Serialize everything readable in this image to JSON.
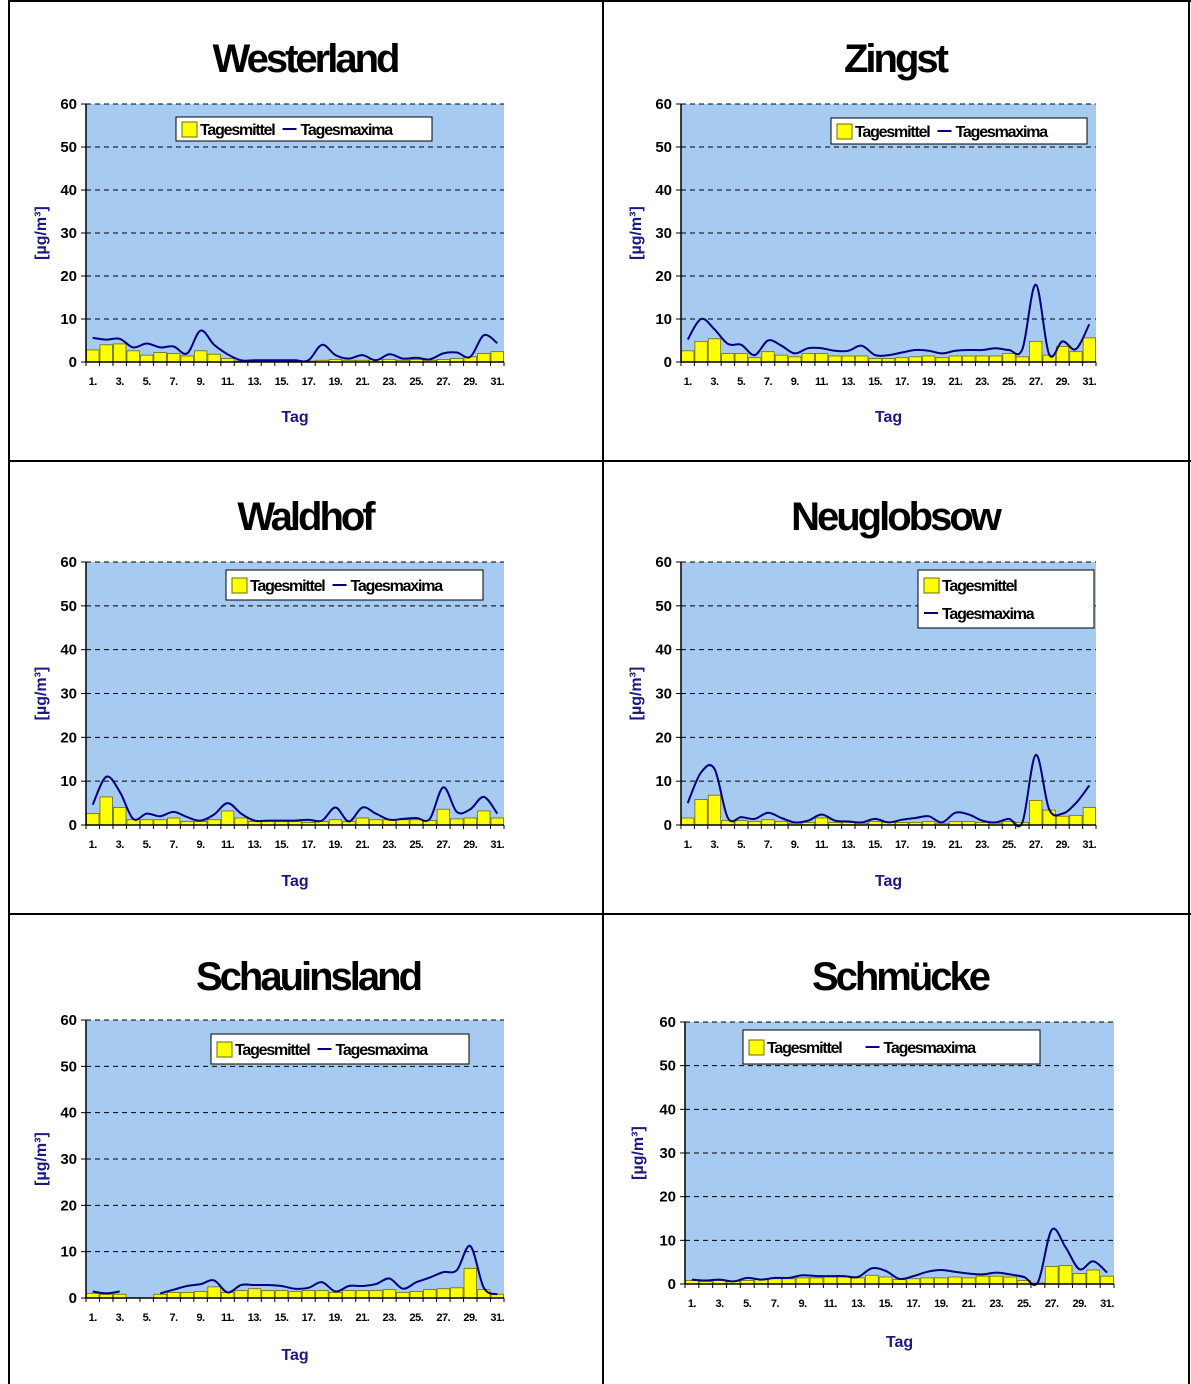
{
  "colors": {
    "plot_bg": "#a6caf0",
    "bar_fill": "#ffff00",
    "bar_stroke": "#6b6b00",
    "line": "#000080",
    "grid": "#000000"
  },
  "chart_data": [
    {
      "type": "bar",
      "title": "Westerland",
      "xlabel": "Tag",
      "ylabel": "[µg/m³]",
      "ylim": [
        0,
        60
      ],
      "yticks": [
        "0",
        "10",
        "20",
        "30",
        "40",
        "50",
        "60"
      ],
      "xticks": [
        "1.",
        "3.",
        "5.",
        "7.",
        "9.",
        "11.",
        "13.",
        "15.",
        "17.",
        "19.",
        "21.",
        "23.",
        "25.",
        "27.",
        "29.",
        "31."
      ],
      "grid": "horizontal dashed",
      "legend": "top-center",
      "series": [
        {
          "name": "Tagesmittel",
          "type": "bar",
          "values": [
            2.8,
            4.0,
            4.2,
            2.6,
            1.6,
            2.2,
            2.0,
            1.4,
            2.6,
            1.8,
            0.8,
            0.2,
            0.2,
            0.2,
            0.2,
            0.2,
            0.2,
            0.4,
            0.6,
            0.4,
            0.4,
            0.6,
            0.6,
            0.4,
            0.6,
            0.4,
            0.6,
            0.8,
            1.2,
            2.0,
            2.4
          ]
        },
        {
          "name": "Tagesmaxima",
          "type": "line",
          "values": [
            5.6,
            5.2,
            5.4,
            3.4,
            4.3,
            3.4,
            3.6,
            2.0,
            7.3,
            4.0,
            1.8,
            0.4,
            0.4,
            0.4,
            0.4,
            0.4,
            0.4,
            4.0,
            1.6,
            0.8,
            1.6,
            0.4,
            1.8,
            0.8,
            1.0,
            0.6,
            2.0,
            2.2,
            1.2,
            6.2,
            4.4
          ]
        }
      ]
    },
    {
      "type": "bar",
      "title": "Zingst",
      "xlabel": "Tag",
      "ylabel": "[µg/m³]",
      "ylim": [
        0,
        60
      ],
      "yticks": [
        "0",
        "10",
        "20",
        "30",
        "40",
        "50",
        "60"
      ],
      "xticks": [
        "1.",
        "3.",
        "5.",
        "7.",
        "9.",
        "11.",
        "13.",
        "15.",
        "17.",
        "19.",
        "21.",
        "23.",
        "25.",
        "27.",
        "29.",
        "31."
      ],
      "grid": "horizontal dashed",
      "legend": "top-right",
      "series": [
        {
          "name": "Tagesmittel",
          "type": "bar",
          "values": [
            2.6,
            4.8,
            5.4,
            2.0,
            2.0,
            1.0,
            2.4,
            1.6,
            1.2,
            2.0,
            2.0,
            1.4,
            1.4,
            1.4,
            0.8,
            0.8,
            1.0,
            1.2,
            1.4,
            1.0,
            1.4,
            1.4,
            1.4,
            1.4,
            2.0,
            1.2,
            4.8,
            1.6,
            3.6,
            2.4,
            5.6
          ]
        },
        {
          "name": "Tagesmaxima",
          "type": "line",
          "values": [
            5.2,
            10.0,
            7.6,
            4.2,
            4.0,
            1.6,
            5.0,
            3.8,
            2.0,
            3.2,
            3.2,
            2.6,
            2.6,
            3.8,
            1.6,
            1.6,
            2.2,
            2.8,
            2.6,
            2.0,
            2.6,
            2.8,
            2.8,
            3.2,
            2.8,
            3.0,
            18.0,
            1.8,
            4.8,
            3.0,
            8.8
          ]
        }
      ]
    },
    {
      "type": "bar",
      "title": "Waldhof",
      "xlabel": "Tag",
      "ylabel": "[µg/m³]",
      "ylim": [
        0,
        60
      ],
      "yticks": [
        "0",
        "10",
        "20",
        "30",
        "40",
        "50",
        "60"
      ],
      "xticks": [
        "1.",
        "3.",
        "5.",
        "7.",
        "9.",
        "11.",
        "13.",
        "15.",
        "17.",
        "19.",
        "21.",
        "23.",
        "25.",
        "27.",
        "29.",
        "31."
      ],
      "grid": "horizontal dashed",
      "legend": "top-right",
      "series": [
        {
          "name": "Tagesmittel",
          "type": "bar",
          "values": [
            2.6,
            6.4,
            4.0,
            1.2,
            1.2,
            1.2,
            1.6,
            0.8,
            0.8,
            1.2,
            3.2,
            1.6,
            0.8,
            0.8,
            0.8,
            0.8,
            0.6,
            0.8,
            1.2,
            0.8,
            1.6,
            1.2,
            1.2,
            1.2,
            1.2,
            1.0,
            3.6,
            1.4,
            1.6,
            3.2,
            1.6
          ]
        },
        {
          "name": "Tagesmaxima",
          "type": "line",
          "values": [
            4.6,
            11.0,
            7.6,
            1.4,
            2.6,
            2.0,
            3.0,
            1.8,
            1.0,
            2.4,
            5.0,
            2.6,
            1.0,
            1.0,
            1.0,
            1.0,
            1.2,
            1.0,
            4.0,
            0.8,
            4.0,
            2.6,
            1.2,
            1.4,
            1.6,
            1.4,
            8.6,
            3.0,
            3.6,
            6.4,
            2.6
          ]
        }
      ]
    },
    {
      "type": "bar",
      "title": "Neuglobsow",
      "xlabel": "Tag",
      "ylabel": "[µg/m³]",
      "ylim": [
        0,
        60
      ],
      "yticks": [
        "0",
        "10",
        "20",
        "30",
        "40",
        "50",
        "60"
      ],
      "xticks": [
        "1.",
        "3.",
        "5.",
        "7.",
        "9.",
        "11.",
        "13.",
        "15.",
        "17.",
        "19.",
        "21.",
        "23.",
        "25.",
        "27.",
        "29.",
        "31."
      ],
      "grid": "horizontal dashed",
      "legend": "top-right",
      "series": [
        {
          "name": "Tagesmittel",
          "type": "bar",
          "values": [
            1.6,
            5.8,
            6.8,
            1.0,
            1.0,
            0.8,
            1.2,
            0.8,
            0.4,
            0.6,
            1.6,
            0.6,
            0.6,
            0.4,
            0.8,
            0.6,
            0.6,
            0.6,
            0.8,
            0.4,
            0.8,
            0.8,
            0.6,
            0.4,
            0.8,
            0.6,
            5.6,
            3.4,
            2.0,
            2.2,
            4.0
          ]
        },
        {
          "name": "Tagesmaxima",
          "type": "line",
          "values": [
            5.0,
            12.0,
            12.8,
            1.6,
            1.8,
            1.4,
            2.8,
            1.6,
            0.6,
            1.0,
            2.4,
            1.0,
            0.8,
            0.6,
            1.4,
            0.6,
            1.2,
            1.6,
            2.0,
            0.6,
            2.8,
            2.4,
            1.0,
            0.6,
            1.4,
            0.6,
            16.0,
            3.6,
            2.6,
            5.0,
            9.0
          ]
        }
      ]
    },
    {
      "type": "bar",
      "title": "Schauinsland",
      "xlabel": "Tag",
      "ylabel": "[µg/m³]",
      "ylim": [
        0,
        60
      ],
      "yticks": [
        "0",
        "10",
        "20",
        "30",
        "40",
        "50",
        "60"
      ],
      "xticks": [
        "1.",
        "3.",
        "5.",
        "7.",
        "9.",
        "11.",
        "13.",
        "15.",
        "17.",
        "19.",
        "21.",
        "23.",
        "25.",
        "27.",
        "29.",
        "31."
      ],
      "grid": "horizontal dashed",
      "legend": "top-right",
      "series": [
        {
          "name": "Tagesmittel",
          "type": "bar",
          "values": [
            1.0,
            0.8,
            0.8,
            null,
            null,
            0.8,
            1.2,
            1.2,
            1.4,
            2.4,
            1.2,
            1.6,
            2.0,
            1.6,
            1.6,
            1.4,
            1.6,
            1.6,
            1.2,
            1.6,
            1.6,
            1.6,
            1.8,
            1.2,
            1.4,
            1.8,
            2.0,
            2.2,
            6.4,
            1.8,
            0.8
          ]
        },
        {
          "name": "Tagesmaxima",
          "type": "line",
          "values": [
            1.4,
            1.0,
            1.4,
            null,
            null,
            1.0,
            1.8,
            2.6,
            3.0,
            3.8,
            1.2,
            2.8,
            2.8,
            2.8,
            2.6,
            2.0,
            2.2,
            3.4,
            1.4,
            2.6,
            2.6,
            3.0,
            4.2,
            2.0,
            3.4,
            4.4,
            5.6,
            6.0,
            11.2,
            2.2,
            0.8
          ]
        }
      ]
    },
    {
      "type": "bar",
      "title": "Schmücke",
      "xlabel": "Tag",
      "ylabel": "[µg/m³]",
      "ylim": [
        0,
        60
      ],
      "yticks": [
        "0",
        "10",
        "20",
        "30",
        "40",
        "50",
        "60"
      ],
      "xticks": [
        "1.",
        "3.",
        "5.",
        "7.",
        "9.",
        "11.",
        "13.",
        "15.",
        "17.",
        "19.",
        "21.",
        "23.",
        "25.",
        "27.",
        "29.",
        "31."
      ],
      "grid": "horizontal dashed",
      "legend": "top-center",
      "series": [
        {
          "name": "Tagesmittel",
          "type": "bar",
          "values": [
            0.8,
            0.6,
            0.8,
            0.6,
            0.8,
            1.0,
            1.2,
            1.2,
            1.4,
            1.4,
            1.6,
            1.6,
            1.4,
            2.0,
            1.6,
            1.0,
            1.2,
            1.4,
            1.4,
            1.6,
            1.4,
            1.8,
            1.8,
            1.6,
            0.8,
            0.2,
            4.0,
            4.2,
            2.4,
            3.2,
            1.8
          ]
        },
        {
          "name": "Tagesmaxima",
          "type": "line",
          "values": [
            1.0,
            0.8,
            1.0,
            0.6,
            1.4,
            1.0,
            1.4,
            1.4,
            2.0,
            1.8,
            1.8,
            1.8,
            1.6,
            3.6,
            3.0,
            1.2,
            1.8,
            2.8,
            3.2,
            2.8,
            2.4,
            2.2,
            2.6,
            2.2,
            1.6,
            0.4,
            12.4,
            8.4,
            3.4,
            5.2,
            2.6
          ]
        }
      ]
    }
  ]
}
